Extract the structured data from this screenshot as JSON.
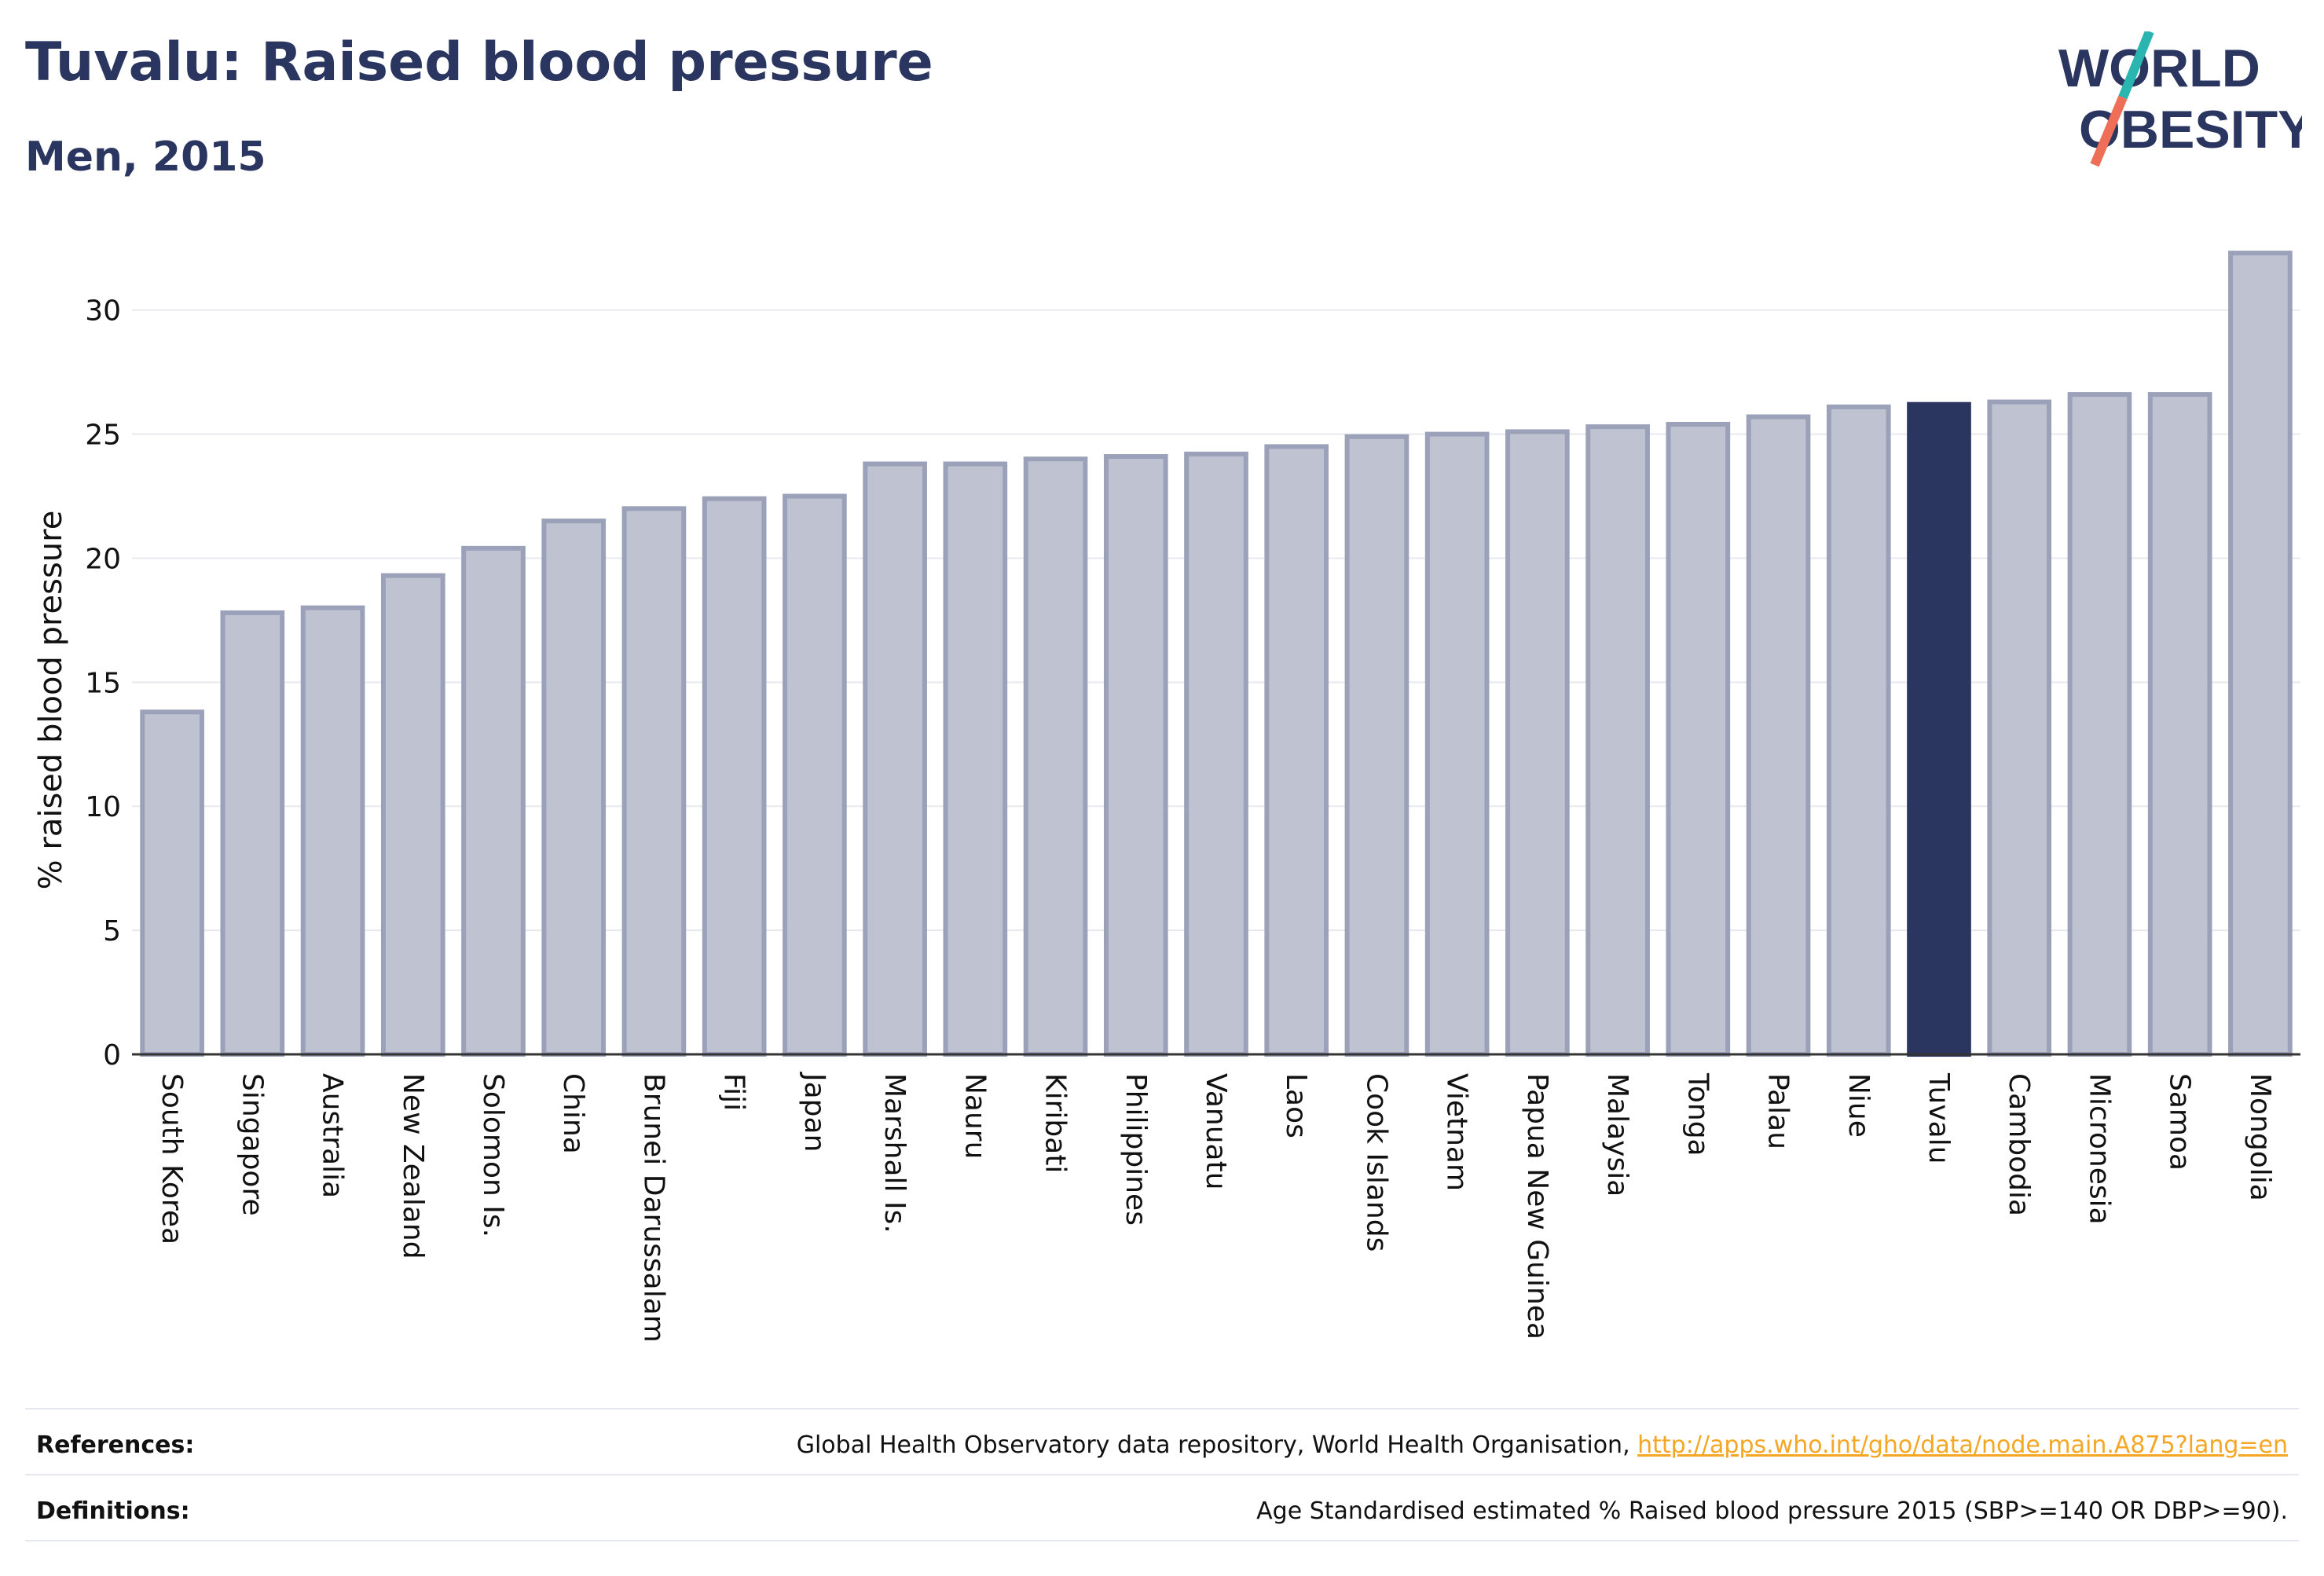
{
  "header": {
    "title": "Tuvalu: Raised blood pressure",
    "subtitle": "Men, 2015"
  },
  "logo": {
    "text_line1": "WORLD",
    "text_line2": "OBESITY",
    "colors": {
      "text": "#2a3560",
      "slash_teal": "#2bb5b0",
      "slash_coral": "#ee6e57"
    }
  },
  "chart_data": {
    "type": "bar",
    "title": "",
    "xlabel": "",
    "ylabel": "% raised blood pressure",
    "ylim": [
      0,
      33
    ],
    "yticks": [
      0,
      5,
      10,
      15,
      20,
      25,
      30
    ],
    "grid": true,
    "highlight": "Tuvalu",
    "colors": {
      "bar": "#bfc3d1",
      "bar_border": "#9aa1b8",
      "highlight": "#2a3560",
      "grid": "#e8e9ef",
      "axis": "#333333"
    },
    "categories": [
      "South Korea",
      "Singapore",
      "Australia",
      "New Zealand",
      "Solomon Is.",
      "China",
      "Brunei Darussalam",
      "Fiji",
      "Japan",
      "Marshall Is.",
      "Nauru",
      "Kiribati",
      "Philippines",
      "Vanuatu",
      "Laos",
      "Cook Islands",
      "Vietnam",
      "Papua New Guinea",
      "Malaysia",
      "Tonga",
      "Palau",
      "Niue",
      "Tuvalu",
      "Cambodia",
      "Micronesia",
      "Samoa",
      "Mongolia"
    ],
    "values": [
      13.8,
      17.8,
      18.0,
      19.3,
      20.4,
      21.5,
      22.0,
      22.4,
      22.5,
      23.8,
      23.8,
      24.0,
      24.1,
      24.2,
      24.5,
      24.9,
      25.0,
      25.1,
      25.3,
      25.4,
      25.7,
      26.1,
      26.2,
      26.3,
      26.6,
      26.6,
      32.3
    ]
  },
  "footer": {
    "references_label": "References:",
    "references_text": "Global Health Observatory data repository, World Health Organisation, ",
    "references_link": "http://apps.who.int/gho/data/node.main.A875?lang=en",
    "definitions_label": "Definitions:",
    "definitions_text": "Age Standardised estimated % Raised blood pressure 2015 (SBP>=140 OR DBP>=90)."
  }
}
